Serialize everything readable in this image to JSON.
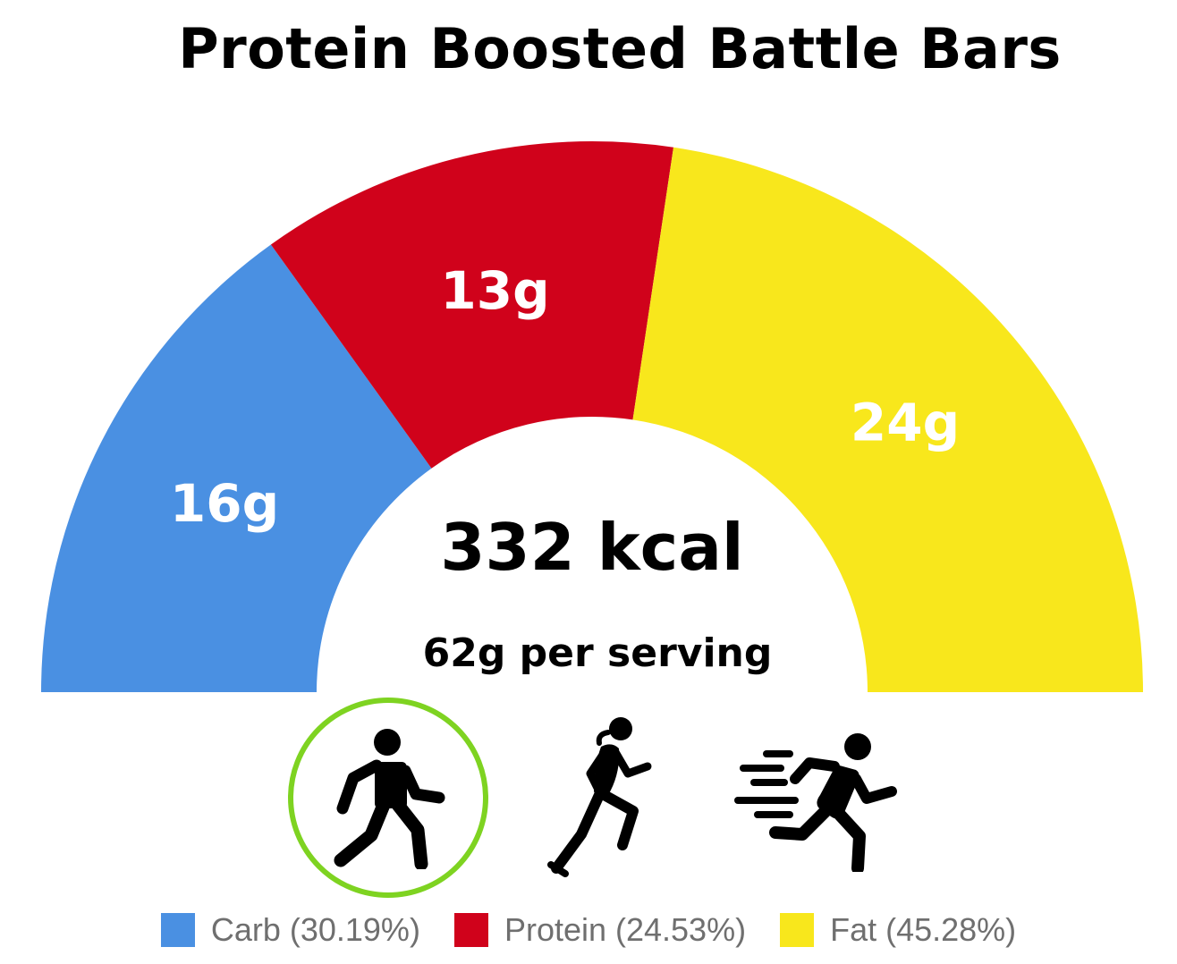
{
  "chart_data": {
    "type": "pie",
    "style": "half-donut gauge",
    "title": "Protein Boosted Battle Bars",
    "center_value": "332 kcal",
    "center_subtitle": "62g per serving",
    "slices": [
      {
        "name": "Carb",
        "grams": 16,
        "label": "16g",
        "percent": 30.19,
        "legend_label": "Carb (30.19%)",
        "color": "#4a90e2"
      },
      {
        "name": "Protein",
        "grams": 13,
        "label": "13g",
        "percent": 24.53,
        "legend_label": "Protein (24.53%)",
        "color": "#d0021b"
      },
      {
        "name": "Fat",
        "grams": 24,
        "label": "24g",
        "percent": 45.28,
        "legend_label": "Fat (45.28%)",
        "color": "#f8e71c"
      }
    ],
    "legend_position": "bottom"
  },
  "activities": [
    {
      "name": "walking-icon",
      "selected": true
    },
    {
      "name": "jogging-icon",
      "selected": false
    },
    {
      "name": "sprinting-icon",
      "selected": false
    }
  ],
  "colors": {
    "selected_ring": "#7ed321",
    "legend_text": "#6f6f6f"
  }
}
